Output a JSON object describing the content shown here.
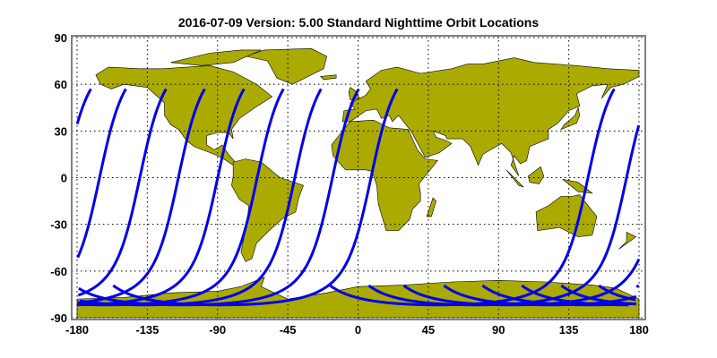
{
  "title": "2016-07-09    Version: 5.00  Standard    Nighttime Orbit Locations",
  "chart_data": {
    "type": "line",
    "title": "2016-07-09    Version: 5.00  Standard    Nighttime Orbit Locations",
    "xlim": [
      -180,
      180
    ],
    "ylim": [
      -90,
      90
    ],
    "x_ticks": [
      "-180",
      "-135",
      "-90",
      "-45",
      "0",
      "45",
      "90",
      "135",
      "180"
    ],
    "y_ticks": [
      "90",
      "60",
      "30",
      "0",
      "-30",
      "-60",
      "-90"
    ],
    "grid": true,
    "orbit_equator_crossing_longitudes": [
      -165.6,
      -139.8,
      -115.1,
      -89.9,
      -64.6,
      -40.5,
      -16.4,
      8.3,
      147.3,
      172.0
    ],
    "orbit_northern_limit_latitude": 57,
    "colors": {
      "land": "#aaaa00",
      "orbit": "#0000ee",
      "frame": "#808080"
    }
  }
}
